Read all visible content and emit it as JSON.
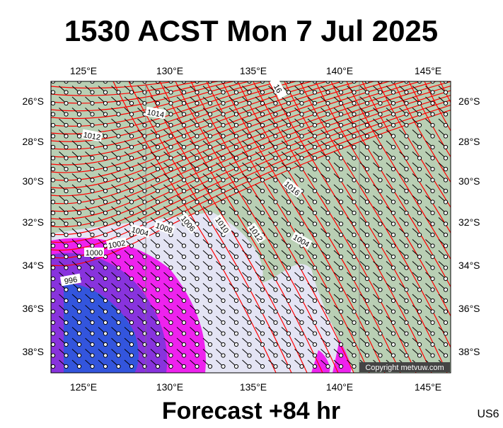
{
  "header": {
    "title": "1530 ACST Mon 7 Jul 2025"
  },
  "map": {
    "lon_labels": [
      "125°E",
      "130°E",
      "135°E",
      "140°E",
      "145°E"
    ],
    "lat_labels": [
      "26°S",
      "28°S",
      "30°S",
      "32°S",
      "34°S",
      "36°S",
      "38°S"
    ],
    "contour_labels": [
      "16",
      "1014",
      "1012",
      "1016",
      "1008",
      "1004",
      "1006",
      "1010",
      "1012",
      "1004",
      "1002",
      "1000",
      "996"
    ],
    "copyright": "Copyright metvuw.com"
  },
  "footer": {
    "forecast": "Forecast +84 hr",
    "region": "US6"
  }
}
